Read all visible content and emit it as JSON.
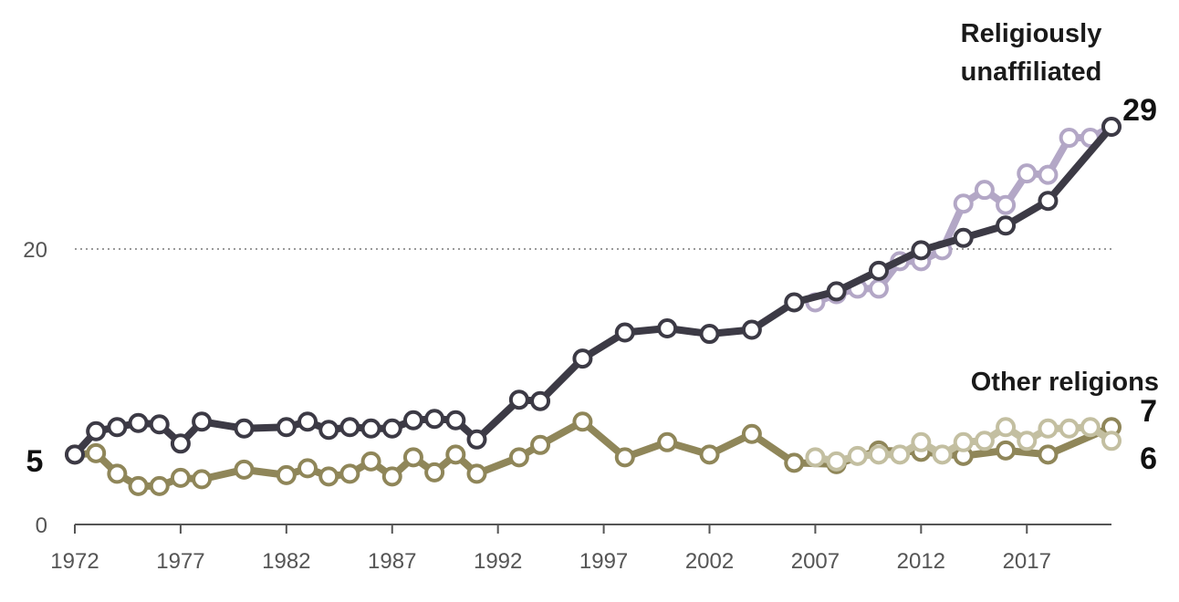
{
  "chart_data": {
    "type": "line",
    "xlim": [
      1972,
      2021
    ],
    "ylim": [
      0,
      30
    ],
    "x_ticks": [
      "1972",
      "1977",
      "1982",
      "1987",
      "1992",
      "1997",
      "2002",
      "2007",
      "2012",
      "2017"
    ],
    "y_ticks": [
      "0",
      "20"
    ],
    "reference_line": 20,
    "series_labels": {
      "unaffiliated": "Religiously unaffiliated",
      "other": "Other religions"
    },
    "start_label": "5",
    "end_labels": {
      "unaffiliated": "29",
      "other_top": "7",
      "other_bottom": "6"
    },
    "colors": {
      "unaffiliated": "#3c3a45",
      "unaffiliated_alt": "#b3a7c6",
      "other": "#8f8659",
      "other_alt": "#c3bfa1"
    },
    "series": [
      {
        "key": "unaffiliated",
        "points": [
          [
            1972,
            5.1
          ],
          [
            1973,
            6.8
          ],
          [
            1974,
            7.1
          ],
          [
            1975,
            7.4
          ],
          [
            1976,
            7.3
          ],
          [
            1977,
            5.9
          ],
          [
            1978,
            7.5
          ],
          [
            1980,
            7.0
          ],
          [
            1982,
            7.1
          ],
          [
            1983,
            7.5
          ],
          [
            1984,
            6.9
          ],
          [
            1985,
            7.1
          ],
          [
            1986,
            7.0
          ],
          [
            1987,
            7.0
          ],
          [
            1988,
            7.6
          ],
          [
            1989,
            7.7
          ],
          [
            1990,
            7.6
          ],
          [
            1991,
            6.2
          ],
          [
            1993,
            9.1
          ],
          [
            1994,
            9.0
          ],
          [
            1996,
            12.1
          ],
          [
            1998,
            14.0
          ],
          [
            2000,
            14.3
          ],
          [
            2002,
            13.9
          ],
          [
            2004,
            14.2
          ],
          [
            2006,
            16.2
          ],
          [
            2008,
            17.0
          ],
          [
            2010,
            18.5
          ],
          [
            2012,
            20.0
          ],
          [
            2014,
            20.9
          ],
          [
            2016,
            21.8
          ],
          [
            2018,
            23.6
          ],
          [
            2021,
            29.0
          ]
        ]
      },
      {
        "key": "unaffiliated_alt",
        "points": [
          [
            2007,
            16.2
          ],
          [
            2008,
            16.8
          ],
          [
            2009,
            17.2
          ],
          [
            2010,
            17.2
          ],
          [
            2011,
            19.2
          ],
          [
            2012,
            19.2
          ],
          [
            2013,
            20.0
          ],
          [
            2014,
            23.4
          ],
          [
            2015,
            24.4
          ],
          [
            2016,
            23.3
          ],
          [
            2017,
            25.6
          ],
          [
            2018,
            25.5
          ],
          [
            2019,
            28.2
          ],
          [
            2020,
            28.2
          ],
          [
            2021,
            29.0
          ]
        ]
      },
      {
        "key": "other",
        "points": [
          [
            1972,
            5.1
          ],
          [
            1973,
            5.2
          ],
          [
            1974,
            3.7
          ],
          [
            1975,
            2.8
          ],
          [
            1976,
            2.8
          ],
          [
            1977,
            3.4
          ],
          [
            1978,
            3.3
          ],
          [
            1980,
            4.0
          ],
          [
            1982,
            3.6
          ],
          [
            1983,
            4.1
          ],
          [
            1984,
            3.5
          ],
          [
            1985,
            3.7
          ],
          [
            1986,
            4.6
          ],
          [
            1987,
            3.5
          ],
          [
            1988,
            4.9
          ],
          [
            1989,
            3.8
          ],
          [
            1990,
            5.1
          ],
          [
            1991,
            3.7
          ],
          [
            1993,
            4.9
          ],
          [
            1994,
            5.8
          ],
          [
            1996,
            7.5
          ],
          [
            1998,
            4.9
          ],
          [
            2000,
            6.0
          ],
          [
            2002,
            5.1
          ],
          [
            2004,
            6.6
          ],
          [
            2006,
            4.5
          ],
          [
            2008,
            4.4
          ],
          [
            2010,
            5.4
          ],
          [
            2012,
            5.3
          ],
          [
            2014,
            5.0
          ],
          [
            2016,
            5.4
          ],
          [
            2018,
            5.1
          ],
          [
            2021,
            7.1
          ]
        ]
      },
      {
        "key": "other_alt",
        "points": [
          [
            2007,
            4.9
          ],
          [
            2008,
            4.6
          ],
          [
            2009,
            5.0
          ],
          [
            2010,
            5.1
          ],
          [
            2011,
            5.1
          ],
          [
            2012,
            6.0
          ],
          [
            2013,
            5.1
          ],
          [
            2014,
            6.0
          ],
          [
            2015,
            6.1
          ],
          [
            2016,
            7.1
          ],
          [
            2017,
            6.1
          ],
          [
            2018,
            7.0
          ],
          [
            2019,
            7.0
          ],
          [
            2020,
            7.1
          ],
          [
            2021,
            6.1
          ]
        ]
      }
    ]
  }
}
